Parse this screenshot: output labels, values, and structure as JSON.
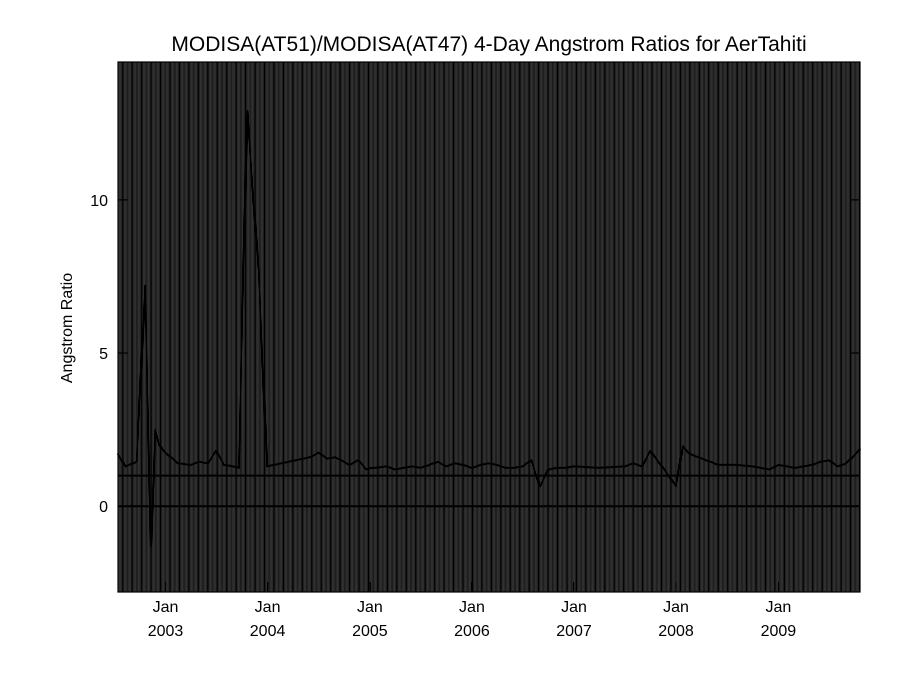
{
  "chart_data": {
    "type": "line",
    "title": "MODISA(AT51)/MODISA(AT47) 4-Day Angstrom Ratios for AerTahiti",
    "xlabel": "",
    "ylabel": "Angstrom Ratio",
    "xlim": [
      "2002-07-15",
      "2009-10-20"
    ],
    "ylim": [
      -2.8,
      14.5
    ],
    "y_ticks": [
      0,
      5,
      10
    ],
    "x_ticks": [
      {
        "month": "Jan",
        "year": "2003",
        "date": "2003-01-01"
      },
      {
        "month": "Jan",
        "year": "2004",
        "date": "2004-01-01"
      },
      {
        "month": "Jan",
        "year": "2005",
        "date": "2005-01-01"
      },
      {
        "month": "Jan",
        "year": "2006",
        "date": "2006-01-01"
      },
      {
        "month": "Jan",
        "year": "2007",
        "date": "2007-01-01"
      },
      {
        "month": "Jan",
        "year": "2008",
        "date": "2008-01-01"
      },
      {
        "month": "Jan",
        "year": "2009",
        "date": "2009-01-01"
      }
    ],
    "grid": "dense vertical lines, one per 4-day period",
    "reference_lines": [
      1,
      0
    ],
    "series": [
      {
        "x": [
          "2002-07-15",
          "2002-08-10",
          "2002-09-20",
          "2002-10-20",
          "2002-11-10",
          "2002-11-25",
          "2002-12-10",
          "2002-12-25",
          "2003-02-15",
          "2003-04-01",
          "2003-05-01",
          "2003-06-01",
          "2003-07-01",
          "2003-07-30",
          "2003-08-30",
          "2003-09-20",
          "2003-10-20",
          "2003-12-01",
          "2003-12-30",
          "2004-06-01",
          "2004-07-01",
          "2004-08-01",
          "2004-08-30",
          "2004-09-20",
          "2004-10-20",
          "2004-11-20",
          "2004-12-20",
          "2005-01-05",
          "2005-01-20",
          "2005-03-01",
          "2005-04-01",
          "2005-05-01",
          "2005-06-01",
          "2005-07-01",
          "2005-08-01",
          "2005-09-01",
          "2005-10-01",
          "2005-11-01",
          "2005-12-01",
          "2006-01-01",
          "2006-02-01",
          "2006-03-01",
          "2006-04-01",
          "2006-05-01",
          "2006-06-01",
          "2006-07-01",
          "2006-08-01",
          "2006-09-01",
          "2006-10-01",
          "2006-11-01",
          "2006-12-01",
          "2007-01-01",
          "2007-04-01",
          "2007-07-01",
          "2007-08-01",
          "2007-09-01",
          "2007-10-01",
          "2007-11-20",
          "2008-01-01",
          "2008-01-25",
          "2008-02-20",
          "2008-06-01",
          "2008-08-01",
          "2008-10-01",
          "2008-12-01",
          "2009-01-01",
          "2009-03-01",
          "2009-05-01",
          "2009-06-01",
          "2009-07-01",
          "2009-08-01",
          "2009-09-01",
          "2009-10-20"
        ],
        "values": [
          1.7,
          1.3,
          1.45,
          7.2,
          -1.3,
          2.5,
          2.0,
          1.8,
          1.4,
          1.35,
          1.45,
          1.4,
          1.8,
          1.35,
          1.3,
          1.25,
          12.9,
          7.5,
          1.3,
          1.6,
          1.75,
          1.55,
          1.6,
          1.5,
          1.35,
          1.5,
          1.2,
          1.25,
          1.25,
          1.3,
          1.2,
          1.25,
          1.3,
          1.25,
          1.35,
          1.45,
          1.3,
          1.4,
          1.35,
          1.25,
          1.35,
          1.4,
          1.35,
          1.25,
          1.25,
          1.3,
          1.5,
          0.65,
          1.2,
          1.25,
          1.25,
          1.3,
          1.25,
          1.3,
          1.4,
          1.3,
          1.8,
          1.2,
          0.65,
          1.95,
          1.7,
          1.35,
          1.35,
          1.3,
          1.2,
          1.35,
          1.25,
          1.35,
          1.45,
          1.5,
          1.3,
          1.4,
          1.85
        ]
      }
    ]
  }
}
